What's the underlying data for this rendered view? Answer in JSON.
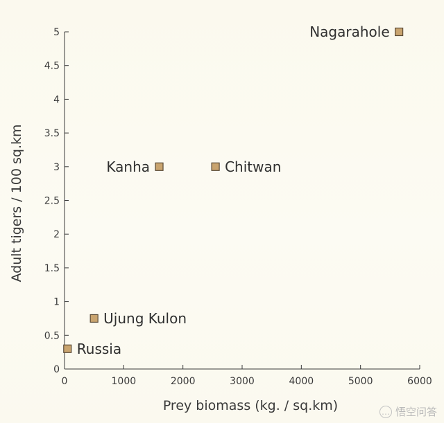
{
  "chart_data": {
    "type": "scatter",
    "title": "",
    "xlabel": "Prey biomass (kg. / sq.km)",
    "ylabel": "Adult tigers / 100 sq.km",
    "xlim": [
      0,
      6000
    ],
    "ylim": [
      0,
      5
    ],
    "x_ticks": [
      0,
      1000,
      2000,
      3000,
      4000,
      5000,
      6000
    ],
    "y_ticks": [
      0,
      0.5,
      1,
      1.5,
      2,
      2.5,
      3,
      3.5,
      4,
      4.5,
      5
    ],
    "x_tick_labels": [
      "0",
      "1000",
      "2000",
      "3000",
      "4000",
      "5000",
      "6000"
    ],
    "y_tick_labels": [
      "0",
      "0.5",
      "1",
      "1.5",
      "2",
      "2.5",
      "3",
      "3.5",
      "4",
      "4.5",
      "5"
    ],
    "grid": false,
    "legend": "none",
    "marker": {
      "shape": "square",
      "fill": "#c9a46f",
      "stroke": "#5a4a36"
    },
    "points": [
      {
        "label": "Russia",
        "x": 50,
        "y": 0.3,
        "label_side": "right"
      },
      {
        "label": "Ujung Kulon",
        "x": 500,
        "y": 0.75,
        "label_side": "right"
      },
      {
        "label": "Kanha",
        "x": 1600,
        "y": 3.0,
        "label_side": "left"
      },
      {
        "label": "Chitwan",
        "x": 2550,
        "y": 3.0,
        "label_side": "right"
      },
      {
        "label": "Nagarahole",
        "x": 5650,
        "y": 5.0,
        "label_side": "left"
      }
    ]
  },
  "watermark": {
    "icon": "speech-bubble-icon",
    "text": "悟空问答"
  },
  "colors": {
    "axis": "#3a3a3a",
    "text": "#2f2f2f",
    "background": "#fbf9ee"
  }
}
